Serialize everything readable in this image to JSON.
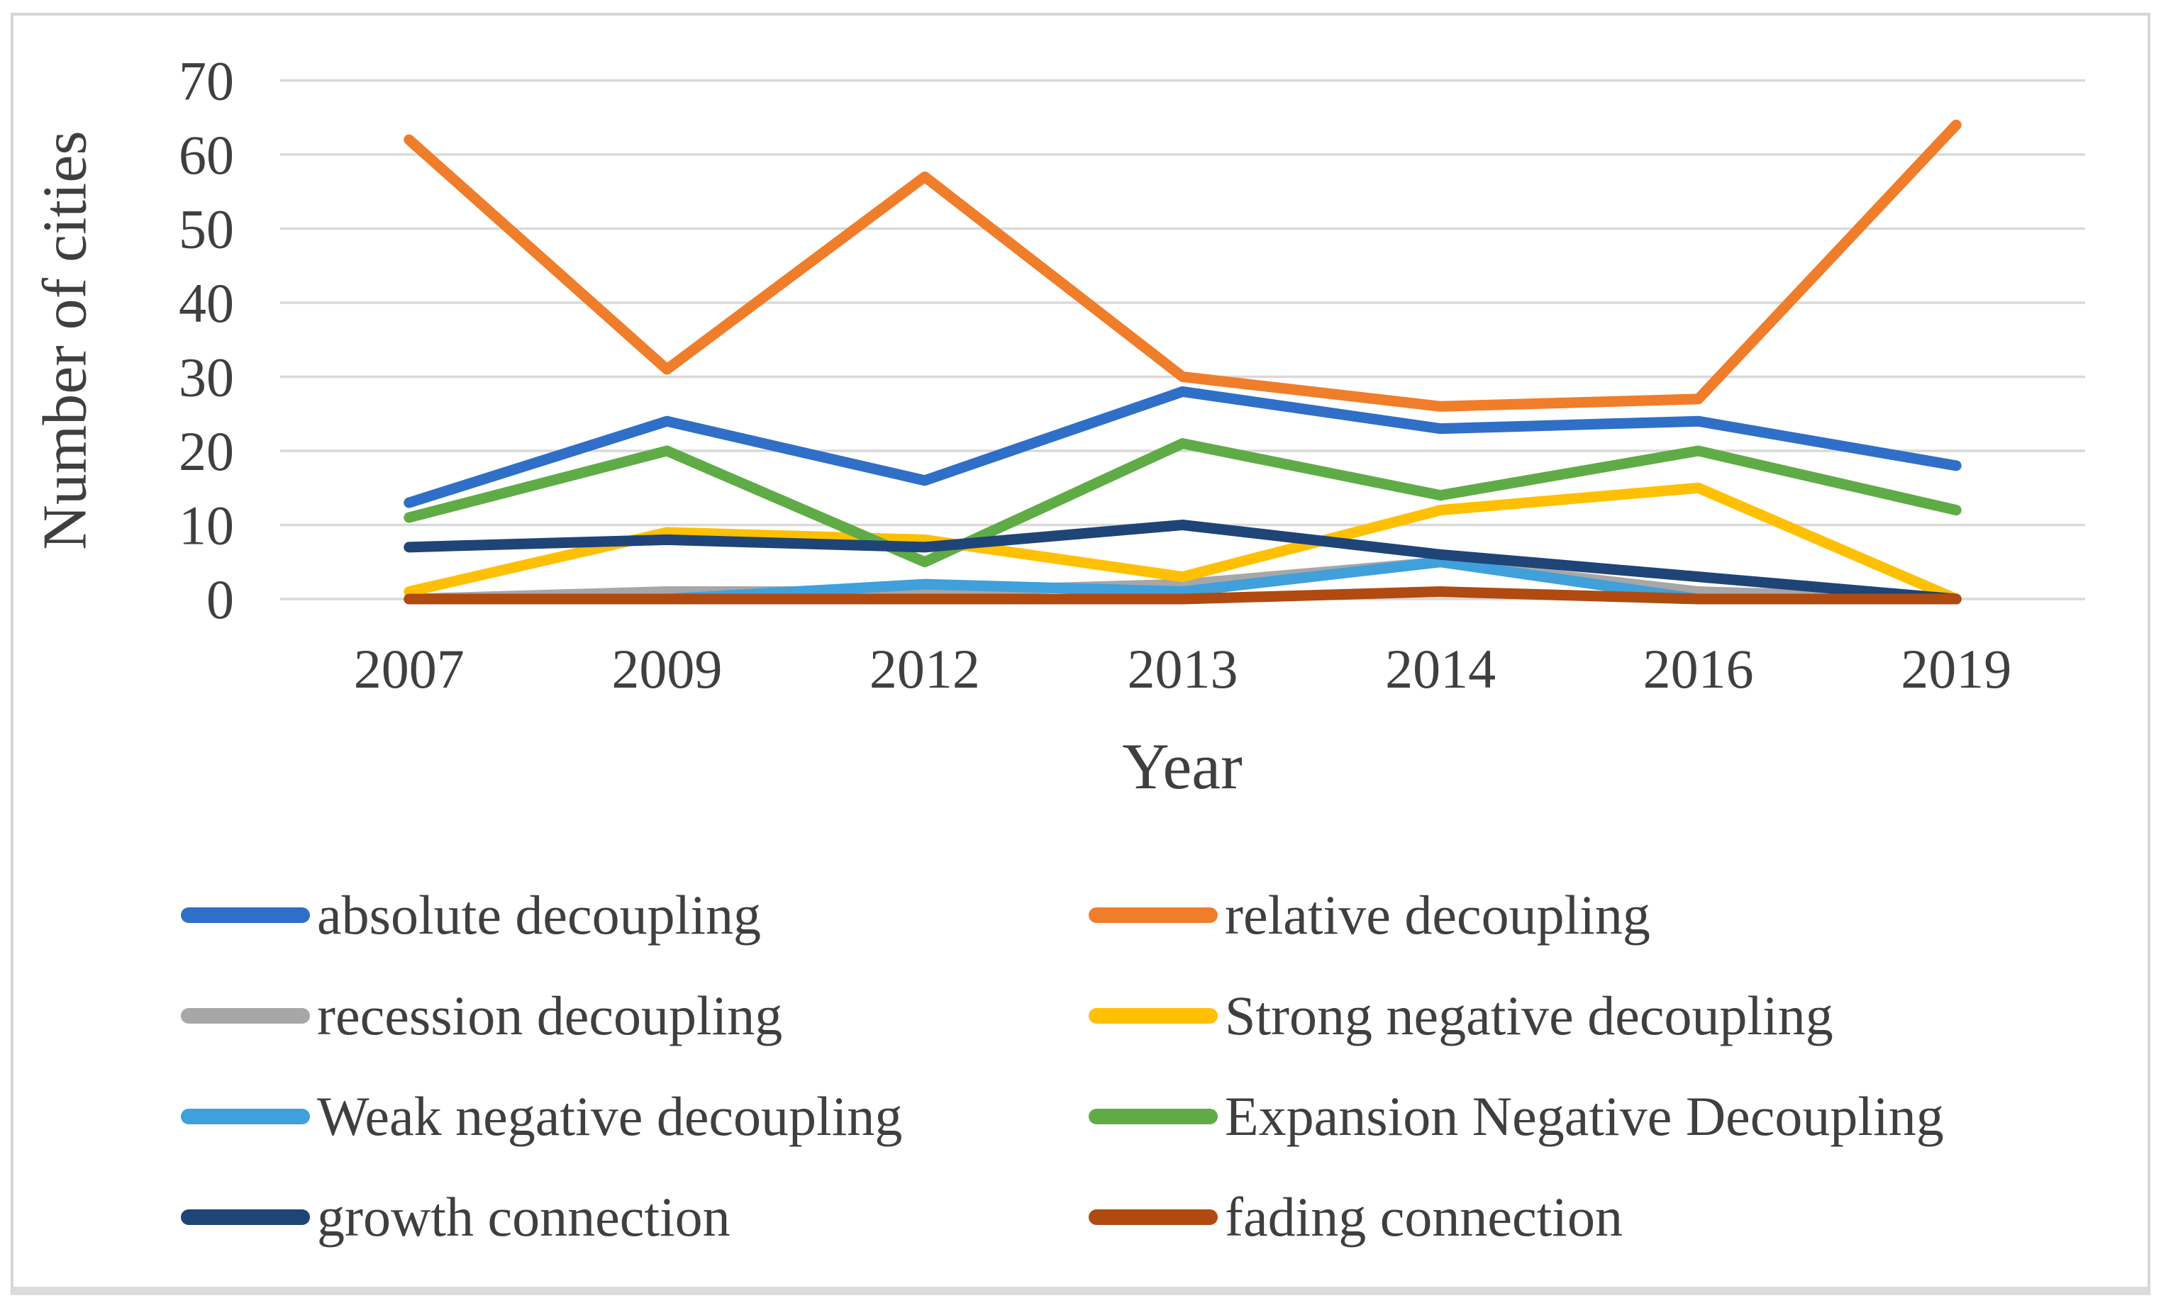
{
  "figure": {
    "frame_color": "#d6d6d6",
    "background": "#ffffff",
    "text_color": "#3f3f3f",
    "gridline_color": "#d9d9d9"
  },
  "chart_data": {
    "type": "line",
    "title": "",
    "xlabel": "Year",
    "ylabel": "Number of cities",
    "categories": [
      "2007",
      "2009",
      "2012",
      "2013",
      "2014",
      "2016",
      "2019"
    ],
    "yticks": [
      0,
      10,
      20,
      30,
      40,
      50,
      60,
      70
    ],
    "ylim": [
      0,
      70
    ],
    "grid": true,
    "legend_position": "bottom-two-columns",
    "series": [
      {
        "name": "absolute decoupling",
        "color": "#2f6fc7",
        "values": [
          13,
          24,
          16,
          28,
          23,
          24,
          18
        ]
      },
      {
        "name": "relative decoupling",
        "color": "#f07d2a",
        "values": [
          62,
          31,
          57,
          30,
          26,
          27,
          64
        ]
      },
      {
        "name": "recession decoupling",
        "color": "#a7a7a7",
        "values": [
          0,
          1,
          1,
          2,
          5,
          1,
          0
        ]
      },
      {
        "name": "Strong negative decoupling",
        "color": "#ffc003",
        "values": [
          1,
          9,
          8,
          3,
          12,
          15,
          0
        ]
      },
      {
        "name": "Weak negative decoupling",
        "color": "#3fa0db",
        "values": [
          0,
          0,
          2,
          1,
          5,
          0,
          0
        ]
      },
      {
        "name": "Expansion Negative Decoupling",
        "color": "#5fac47",
        "values": [
          11,
          20,
          5,
          21,
          14,
          20,
          12
        ]
      },
      {
        "name": "growth connection",
        "color": "#1f4478",
        "values": [
          7,
          8,
          7,
          10,
          6,
          3,
          0
        ]
      },
      {
        "name": "fading connection",
        "color": "#b04a10",
        "values": [
          0,
          0,
          0,
          0,
          1,
          0,
          0
        ]
      }
    ]
  }
}
